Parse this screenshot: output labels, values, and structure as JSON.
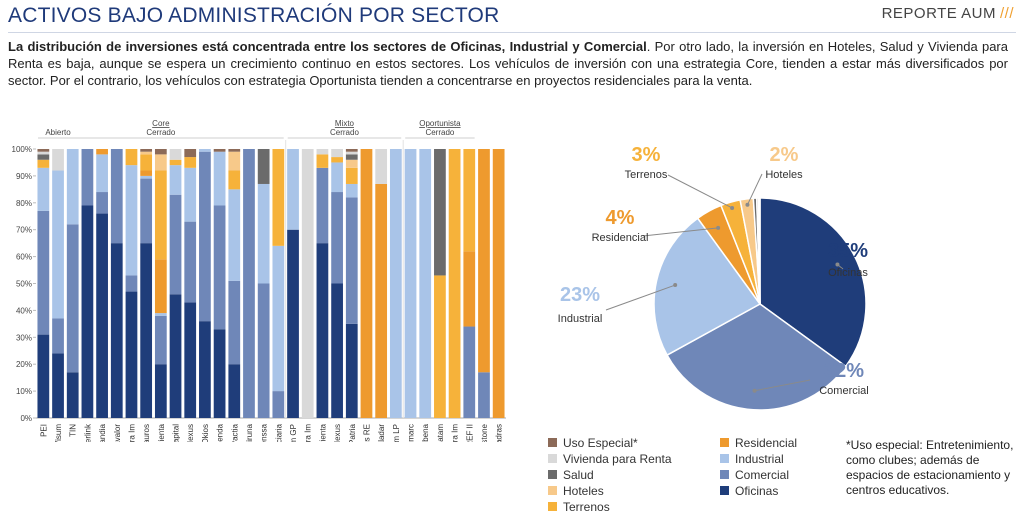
{
  "header": {
    "title": "ACTIVOS BAJO ADMINISTRACIÓN POR SECTOR",
    "badge": "REPORTE AUM",
    "badge_slashes": "///"
  },
  "intro": {
    "bold": "La distribución de inversiones está concentrada entre los sectores de Oficinas, Industrial y Comercial",
    "rest": ". Por otro lado, la inversión en Hoteles, Salud y Vivienda para Renta es baja, aunque se espera un crecimiento continuo en estos sectores. Los vehículos de inversión con una estrategia Core, tienden a estar más diversificados por sector. Por el contrario, los vehículos con estrategia Oportunista tienden a concentrarse en proyectos residenciales para la venta."
  },
  "sectors": [
    {
      "key": "oficinas",
      "label": "Oficinas",
      "color": "#1f3d7a"
    },
    {
      "key": "comercial",
      "label": "Comercial",
      "color": "#6f87b8"
    },
    {
      "key": "industrial",
      "label": "Industrial",
      "color": "#a9c4e8"
    },
    {
      "key": "residencial",
      "label": "Residencial",
      "color": "#ee9a2e"
    },
    {
      "key": "terrenos",
      "label": "Terrenos",
      "color": "#f6b23a"
    },
    {
      "key": "hoteles",
      "label": "Hoteles",
      "color": "#f7c98a"
    },
    {
      "key": "salud",
      "label": "Salud",
      "color": "#6b6b6b"
    },
    {
      "key": "vivienda",
      "label": "Vivienda para Renta",
      "color": "#d9d9d9"
    },
    {
      "key": "uso",
      "label": "Uso Especial*",
      "color": "#8c6a58"
    }
  ],
  "legend_layout": [
    [
      "uso",
      "residencial"
    ],
    [
      "vivienda",
      "industrial"
    ],
    [
      "salud",
      "comercial"
    ],
    [
      "hoteles",
      "oficinas"
    ],
    [
      "terrenos",
      null
    ]
  ],
  "note": "*Uso especial: Entretenimiento, como clubes; además de espacios de estacionamiento y centros educativos.",
  "chart_data": [
    {
      "type": "bar",
      "stacked": true,
      "title": "",
      "xlabel": "",
      "ylabel": "",
      "ylim": [
        0,
        100
      ],
      "yticks": [
        "0%",
        "10%",
        "20%",
        "30%",
        "40%",
        "50%",
        "60%",
        "70%",
        "80%",
        "90%",
        "100%"
      ],
      "groups": [
        {
          "label": "Core",
          "sub": [
            "Abierto",
            "Cerrado"
          ],
          "start": 0,
          "end": 16
        },
        {
          "label": "Mixto",
          "sub": [
            "Cerrado"
          ],
          "start": 17,
          "end": 24
        },
        {
          "label": "Oportunista",
          "sub": [
            "Cerrado"
          ],
          "start": 25,
          "end": 29
        }
      ],
      "categories": [
        "PEI",
        "Visum",
        "TIN",
        "Inverlink",
        "Skandia",
        "Bancavalor",
        "Sura Im",
        "Kentauros",
        "Pienta",
        "Credicorp Capital",
        "Nexus",
        "Okios",
        "Corredores Davivienda",
        "Pactia",
        "Kiruna",
        "Plenssa",
        "Alianza Fiduciaria",
        "Terranum GP",
        "Sura Im",
        "Pienta",
        "Nexus",
        "Patria",
        "Abacus RE",
        "Paladar",
        "LatAm LP",
        "Elmarc",
        "Nacobena",
        "TC Latam",
        "Sura Im",
        "Avenida CREF II",
        "Yellowstone",
        "Quadras"
      ],
      "series": [
        {
          "name": "Oficinas",
          "values": [
            31,
            24,
            17,
            79,
            76,
            65,
            47,
            65,
            20,
            46,
            43,
            36,
            33,
            20,
            0,
            0,
            0,
            70,
            0,
            65,
            50,
            35,
            0,
            0,
            0,
            0,
            0,
            0,
            0,
            0,
            0,
            0
          ]
        },
        {
          "name": "Comercial",
          "values": [
            46,
            13,
            55,
            21,
            8,
            35,
            6,
            24,
            18,
            37,
            30,
            63,
            46,
            31,
            100,
            50,
            10,
            0,
            0,
            28,
            34,
            47,
            0,
            0,
            0,
            0,
            0,
            0,
            0,
            34,
            17,
            0
          ]
        },
        {
          "name": "Industrial",
          "values": [
            16,
            55,
            28,
            0,
            14,
            0,
            41,
            1,
            1,
            11,
            20,
            1,
            20,
            34,
            0,
            37,
            54,
            30,
            0,
            0,
            11,
            5,
            0,
            0,
            100,
            100,
            100,
            0,
            0,
            0,
            0,
            0
          ]
        },
        {
          "name": "Residencial",
          "values": [
            0,
            0,
            0,
            0,
            2,
            0,
            0,
            2,
            20,
            0,
            0,
            0,
            0,
            0,
            0,
            0,
            0,
            0,
            0,
            0,
            0,
            0,
            100,
            87,
            0,
            0,
            0,
            0,
            0,
            28,
            83,
            100
          ]
        },
        {
          "name": "Terrenos",
          "values": [
            3,
            0,
            0,
            0,
            0,
            0,
            6,
            6,
            33,
            2,
            4,
            0,
            0,
            7,
            0,
            0,
            36,
            0,
            0,
            5,
            2,
            6,
            0,
            0,
            0,
            0,
            0,
            53,
            100,
            38,
            0,
            0
          ]
        },
        {
          "name": "Hoteles",
          "values": [
            0,
            0,
            0,
            0,
            0,
            0,
            0,
            1,
            6,
            0,
            0,
            0,
            0,
            7,
            0,
            0,
            0,
            0,
            0,
            0,
            0,
            3,
            0,
            0,
            0,
            0,
            0,
            0,
            0,
            0,
            0,
            0
          ]
        },
        {
          "name": "Salud",
          "values": [
            2,
            0,
            0,
            0,
            0,
            0,
            0,
            0,
            0,
            0,
            0,
            0,
            0,
            0,
            0,
            13,
            0,
            0,
            0,
            0,
            0,
            2,
            0,
            0,
            0,
            0,
            0,
            47,
            0,
            0,
            0,
            0
          ]
        },
        {
          "name": "Vivienda para Renta",
          "values": [
            1,
            8,
            0,
            0,
            0,
            0,
            0,
            0,
            0,
            4,
            0,
            0,
            0,
            0,
            0,
            0,
            0,
            0,
            100,
            2,
            3,
            1,
            0,
            13,
            0,
            0,
            0,
            0,
            0,
            0,
            0,
            0
          ]
        },
        {
          "name": "Uso Especial*",
          "values": [
            1,
            0,
            0,
            0,
            0,
            0,
            0,
            1,
            2,
            0,
            3,
            0,
            1,
            1,
            0,
            0,
            0,
            0,
            0,
            0,
            0,
            1,
            0,
            0,
            0,
            0,
            0,
            0,
            0,
            0,
            0,
            0
          ]
        }
      ]
    },
    {
      "type": "pie",
      "title": "",
      "slices": [
        {
          "name": "Oficinas",
          "value": 35,
          "label": "35%"
        },
        {
          "name": "Comercial",
          "value": 32,
          "label": "32%"
        },
        {
          "name": "Industrial",
          "value": 23,
          "label": "23%"
        },
        {
          "name": "Residencial",
          "value": 4,
          "label": "4%"
        },
        {
          "name": "Terrenos",
          "value": 3,
          "label": "3%"
        },
        {
          "name": "Hoteles",
          "value": 2,
          "label": "2%"
        },
        {
          "name": "Salud",
          "value": 0.5,
          "label": ""
        },
        {
          "name": "Vivienda para Renta",
          "value": 0.3,
          "label": ""
        },
        {
          "name": "Uso Especial*",
          "value": 0.2,
          "label": ""
        }
      ]
    }
  ]
}
